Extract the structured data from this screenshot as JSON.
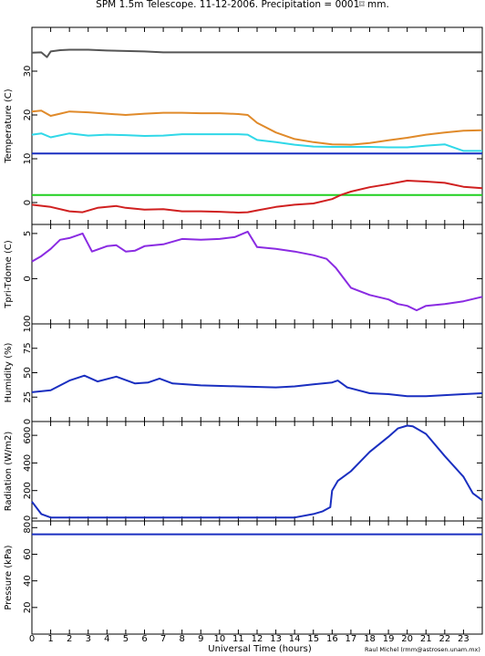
{
  "title": "SPM 1.5m Telescope. 11-12-2006. Precipitation = 0001⌑ mm.",
  "xlabel": "Universal Time (hours)",
  "credit": "Raul Michel (rmm@astrosen.unam.mx)",
  "x_ticks": [
    "0",
    "1",
    "2",
    "3",
    "4",
    "5",
    "6",
    "7",
    "8",
    "9",
    "10",
    "11",
    "12",
    "13",
    "14",
    "15",
    "16",
    "17",
    "18",
    "19",
    "20",
    "21",
    "22",
    "23"
  ],
  "chart_data": [
    {
      "type": "line",
      "ylabel": "Temperature (C)",
      "ylim": [
        -5,
        40
      ],
      "yticks": [
        0,
        10,
        20,
        30
      ],
      "x_range": [
        0,
        24
      ],
      "series": [
        {
          "color": "#555555",
          "points": [
            [
              0,
              34.2
            ],
            [
              0.5,
              34.3
            ],
            [
              0.8,
              33.2
            ],
            [
              1,
              34.5
            ],
            [
              1.5,
              34.8
            ],
            [
              2,
              34.9
            ],
            [
              3,
              34.9
            ],
            [
              4,
              34.7
            ],
            [
              5,
              34.6
            ],
            [
              6,
              34.5
            ],
            [
              6.5,
              34.4
            ],
            [
              7,
              34.3
            ],
            [
              12,
              34.3
            ],
            [
              16,
              34.3
            ],
            [
              20,
              34.3
            ],
            [
              24,
              34.3
            ]
          ]
        },
        {
          "color": "#e08a2a",
          "points": [
            [
              0,
              20.8
            ],
            [
              0.5,
              21
            ],
            [
              1,
              19.8
            ],
            [
              1.5,
              20.3
            ],
            [
              2,
              20.8
            ],
            [
              3,
              20.6
            ],
            [
              4,
              20.3
            ],
            [
              5,
              20
            ],
            [
              6,
              20.3
            ],
            [
              7,
              20.5
            ],
            [
              8,
              20.5
            ],
            [
              9,
              20.4
            ],
            [
              10,
              20.4
            ],
            [
              11,
              20.2
            ],
            [
              11.5,
              20
            ],
            [
              12,
              18.2
            ],
            [
              13,
              16
            ],
            [
              14,
              14.5
            ],
            [
              15,
              13.8
            ],
            [
              16,
              13.3
            ],
            [
              17,
              13.2
            ],
            [
              18,
              13.6
            ],
            [
              19,
              14.2
            ],
            [
              20,
              14.8
            ],
            [
              21,
              15.5
            ],
            [
              22,
              16
            ],
            [
              23,
              16.4
            ],
            [
              24,
              16.5
            ]
          ]
        },
        {
          "color": "#30d8e8",
          "points": [
            [
              0,
              15.5
            ],
            [
              0.5,
              15.8
            ],
            [
              1,
              14.9
            ],
            [
              2,
              15.8
            ],
            [
              3,
              15.3
            ],
            [
              4,
              15.5
            ],
            [
              5,
              15.4
            ],
            [
              6,
              15.2
            ],
            [
              7,
              15.3
            ],
            [
              8,
              15.6
            ],
            [
              9,
              15.6
            ],
            [
              10,
              15.6
            ],
            [
              11,
              15.6
            ],
            [
              11.5,
              15.5
            ],
            [
              12,
              14.3
            ],
            [
              13,
              13.8
            ],
            [
              14,
              13.2
            ],
            [
              15,
              12.8
            ],
            [
              16,
              12.7
            ],
            [
              17,
              12.7
            ],
            [
              18,
              12.7
            ],
            [
              19,
              12.6
            ],
            [
              20,
              12.6
            ],
            [
              21,
              13
            ],
            [
              22,
              13.3
            ],
            [
              23,
              11.8
            ],
            [
              24,
              11.8
            ]
          ]
        },
        {
          "color": "#1a2fc0",
          "points": [
            [
              0,
              11.2
            ],
            [
              24,
              11.2
            ]
          ]
        },
        {
          "color": "#20d020",
          "points": [
            [
              0,
              1.7
            ],
            [
              24,
              1.7
            ]
          ]
        },
        {
          "color": "#d02020",
          "points": [
            [
              0,
              -0.5
            ],
            [
              1,
              -1
            ],
            [
              2,
              -2
            ],
            [
              2.7,
              -2.2
            ],
            [
              3.5,
              -1.2
            ],
            [
              4.5,
              -0.8
            ],
            [
              5,
              -1.2
            ],
            [
              6,
              -1.6
            ],
            [
              7,
              -1.5
            ],
            [
              8,
              -2
            ],
            [
              9,
              -2
            ],
            [
              10,
              -2.1
            ],
            [
              11,
              -2.3
            ],
            [
              11.5,
              -2.2
            ],
            [
              12,
              -1.8
            ],
            [
              13,
              -1
            ],
            [
              14,
              -0.5
            ],
            [
              15,
              -0.2
            ],
            [
              16,
              0.8
            ],
            [
              16.5,
              1.8
            ],
            [
              17,
              2.5
            ],
            [
              18,
              3.5
            ],
            [
              19,
              4.2
            ],
            [
              20,
              5
            ],
            [
              21,
              4.8
            ],
            [
              22,
              4.5
            ],
            [
              23,
              3.6
            ],
            [
              24,
              3.3
            ]
          ]
        }
      ]
    },
    {
      "type": "line",
      "ylabel": "Tpri-Tdome (C)",
      "ylim": [
        -5,
        6
      ],
      "yticks": [
        0,
        5
      ],
      "x_range": [
        0,
        24
      ],
      "series": [
        {
          "color": "#8a2be2",
          "points": [
            [
              0,
              1.9
            ],
            [
              0.5,
              2.5
            ],
            [
              1,
              3.3
            ],
            [
              1.5,
              4.3
            ],
            [
              2,
              4.5
            ],
            [
              2.7,
              5
            ],
            [
              3.2,
              3
            ],
            [
              4,
              3.6
            ],
            [
              4.5,
              3.7
            ],
            [
              5,
              3
            ],
            [
              5.5,
              3.1
            ],
            [
              6,
              3.6
            ],
            [
              7,
              3.8
            ],
            [
              8,
              4.4
            ],
            [
              9,
              4.3
            ],
            [
              10,
              4.4
            ],
            [
              10.8,
              4.6
            ],
            [
              11.5,
              5.2
            ],
            [
              12,
              3.5
            ],
            [
              13,
              3.3
            ],
            [
              14,
              3
            ],
            [
              15,
              2.6
            ],
            [
              15.7,
              2.2
            ],
            [
              16.2,
              1.2
            ],
            [
              17,
              -1
            ],
            [
              18,
              -1.8
            ],
            [
              19,
              -2.3
            ],
            [
              19.5,
              -2.8
            ],
            [
              20,
              -3
            ],
            [
              20.5,
              -3.5
            ],
            [
              21,
              -3
            ],
            [
              22,
              -2.8
            ],
            [
              23,
              -2.5
            ],
            [
              24,
              -2
            ]
          ]
        }
      ]
    },
    {
      "type": "line",
      "ylabel": "Humidity (%)",
      "ylim": [
        0,
        100
      ],
      "yticks": [
        0,
        25,
        50,
        75,
        100
      ],
      "x_range": [
        0,
        24
      ],
      "series": [
        {
          "color": "#1a2fc0",
          "points": [
            [
              0,
              30
            ],
            [
              1,
              32
            ],
            [
              2,
              42
            ],
            [
              2.8,
              47
            ],
            [
              3.5,
              41
            ],
            [
              4.5,
              46
            ],
            [
              5.5,
              39
            ],
            [
              6.2,
              40
            ],
            [
              6.8,
              44
            ],
            [
              7.5,
              39
            ],
            [
              9,
              37
            ],
            [
              11,
              36
            ],
            [
              13,
              35
            ],
            [
              14,
              36
            ],
            [
              15,
              38
            ],
            [
              16,
              40
            ],
            [
              16.3,
              42
            ],
            [
              16.8,
              35
            ],
            [
              18,
              29
            ],
            [
              19,
              28
            ],
            [
              20,
              26
            ],
            [
              21,
              26
            ],
            [
              22,
              27
            ],
            [
              23,
              28
            ],
            [
              24,
              29
            ]
          ]
        }
      ]
    },
    {
      "type": "line",
      "ylabel": "Radiation (W/m2)",
      "ylim": [
        -20,
        700
      ],
      "yticks": [
        0,
        200,
        400,
        600
      ],
      "x_range": [
        0,
        24
      ],
      "series": [
        {
          "color": "#1a2fc0",
          "points": [
            [
              0,
              120
            ],
            [
              0.5,
              30
            ],
            [
              1,
              5
            ],
            [
              2,
              5
            ],
            [
              6,
              5
            ],
            [
              10,
              5
            ],
            [
              14,
              5
            ],
            [
              15,
              30
            ],
            [
              15.5,
              50
            ],
            [
              15.9,
              80
            ],
            [
              16,
              200
            ],
            [
              16.3,
              270
            ],
            [
              17,
              340
            ],
            [
              18,
              480
            ],
            [
              19,
              590
            ],
            [
              19.5,
              650
            ],
            [
              20,
              670
            ],
            [
              20.3,
              665
            ],
            [
              21,
              610
            ],
            [
              22,
              450
            ],
            [
              23,
              300
            ],
            [
              23.5,
              180
            ],
            [
              24,
              130
            ]
          ]
        }
      ]
    },
    {
      "type": "line",
      "ylabel": "Pressure (kPa)",
      "ylim": [
        0,
        85
      ],
      "yticks": [
        20,
        40,
        60,
        80
      ],
      "x_range": [
        0,
        24
      ],
      "series": [
        {
          "color": "#1a2fc0",
          "points": [
            [
              0,
              75
            ],
            [
              24,
              75
            ]
          ]
        }
      ]
    }
  ]
}
